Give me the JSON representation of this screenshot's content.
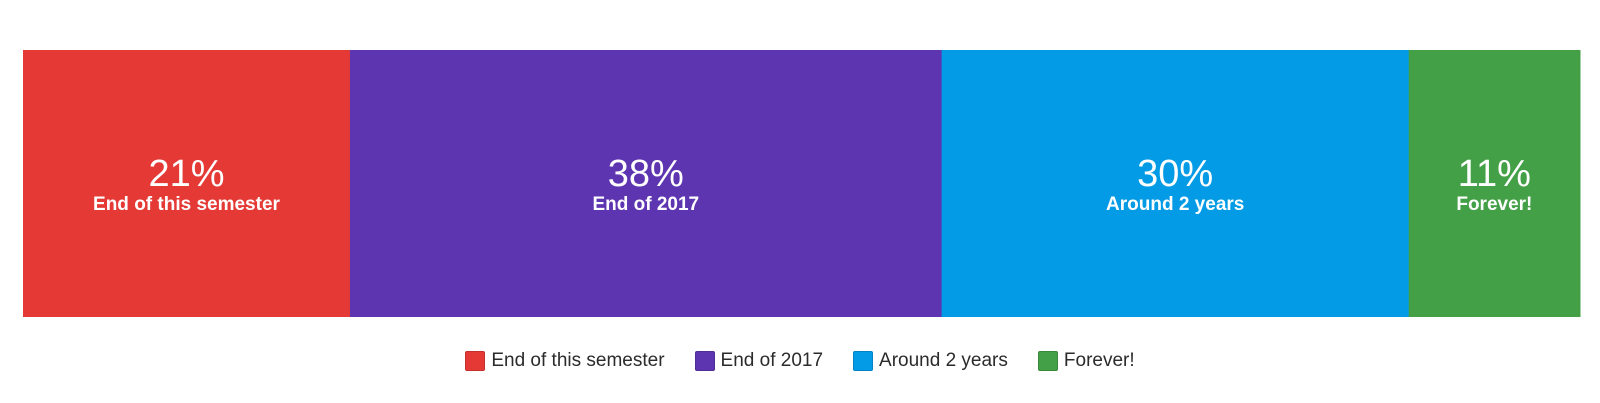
{
  "chart_data": {
    "type": "bar",
    "orientation": "horizontal-stacked-100",
    "categories": [
      "End of this semester",
      "End of 2017",
      "Around 2 years",
      "Forever!"
    ],
    "values": [
      21,
      38,
      30,
      11
    ],
    "value_labels": [
      "21%",
      "38%",
      "30%",
      "11%"
    ],
    "unit": "%",
    "colors": [
      "#e53935",
      "#5e35b1",
      "#039be5",
      "#43a047"
    ],
    "legend": {
      "position": "bottom-center",
      "entries": [
        "End of this semester",
        "End of 2017",
        "Around 2 years",
        "Forever!"
      ]
    },
    "grid": false,
    "title": "",
    "xlabel": "",
    "ylabel": ""
  }
}
